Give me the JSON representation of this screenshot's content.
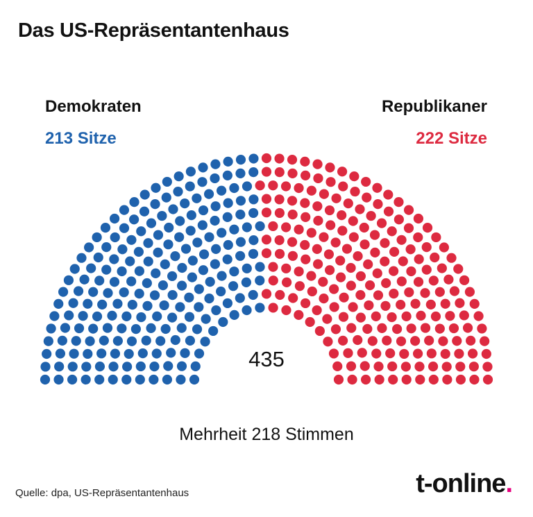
{
  "title": "Das US-Repräsentantenhaus",
  "parties": {
    "left": {
      "name": "Demokraten",
      "seats_label": "213 Sitze",
      "color": "#1f62ad"
    },
    "right": {
      "name": "Republikaner",
      "seats_label": "222 Sitze",
      "color": "#dd2a40"
    }
  },
  "total_label": "435",
  "majority_label": "Mehrheit 218 Stimmen",
  "source": "Quelle: dpa, US-Repräsentantenhaus",
  "logo": {
    "text": "t-online",
    "dot": ".",
    "dot_color": "#e6007e"
  },
  "chart_data": {
    "type": "parliament",
    "total": 435,
    "series": [
      {
        "name": "Demokraten",
        "values": [
          213
        ],
        "color": "#1f62ad"
      },
      {
        "name": "Republikaner",
        "values": [
          222
        ],
        "color": "#dd2a40"
      }
    ]
  }
}
